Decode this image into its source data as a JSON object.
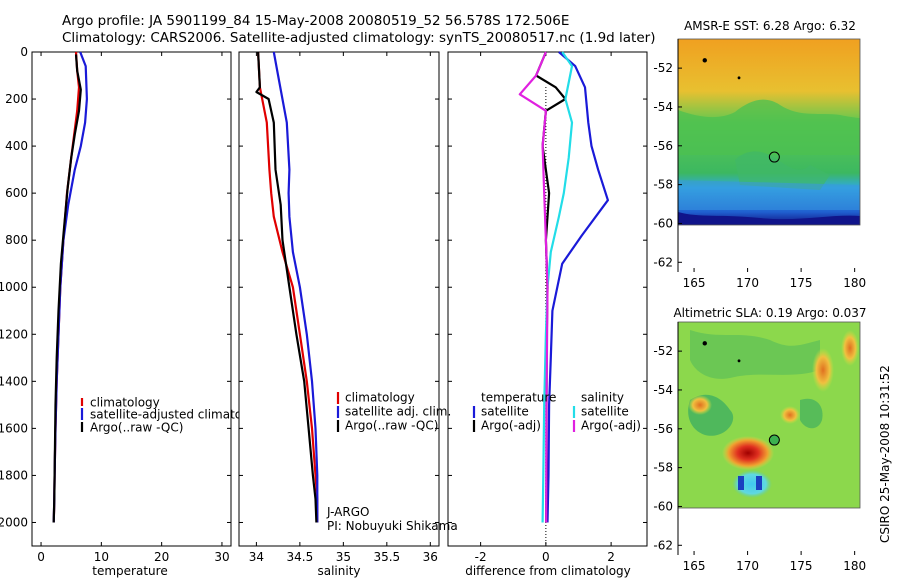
{
  "header": {
    "line1": "Argo profile: JA 5901199_84 15-May-2008 20080519_52 56.578S 172.506E",
    "line2": "Climatology: CARS2006. Satellite-adjusted climatology: synTS_20080517.nc (1.9d later)"
  },
  "side_text": "CSIRO 25-May-2008 10:31:52",
  "colors": {
    "red": "#e00000",
    "blue": "#1a1ad8",
    "black": "#000000",
    "cyan": "#22dde8",
    "magenta": "#e020e0"
  },
  "chart_data": [
    {
      "id": "temperature",
      "type": "line",
      "xlabel": "temperature",
      "xlim": [
        -1.5,
        31.5
      ],
      "xticks": [
        0,
        10,
        20,
        30
      ],
      "ylim": [
        2100,
        0
      ],
      "yticks": [
        0,
        200,
        400,
        600,
        800,
        1000,
        1200,
        1400,
        1600,
        1800,
        2000
      ],
      "legend": [
        "climatology",
        "satellite-adjusted climatology",
        "Argo(..raw -QC)"
      ],
      "series": [
        {
          "name": "climatology",
          "color": "red",
          "x": [
            5.8,
            6.0,
            6.3,
            6.0,
            5.5,
            5.0,
            4.3,
            3.7,
            3.2,
            2.9,
            2.6,
            2.4,
            2.25,
            2.2,
            2.15,
            2.1
          ],
          "y": [
            0,
            80,
            150,
            250,
            350,
            450,
            600,
            800,
            1000,
            1200,
            1400,
            1600,
            1800,
            1900,
            1960,
            2000
          ]
        },
        {
          "name": "satellite-adjusted climatology",
          "color": "blue",
          "x": [
            6.5,
            7.4,
            7.6,
            7.3,
            6.6,
            5.6,
            4.5,
            3.7,
            3.2,
            2.9,
            2.6,
            2.4,
            2.25,
            2.2,
            2.1
          ],
          "y": [
            0,
            60,
            200,
            300,
            400,
            500,
            650,
            800,
            1000,
            1200,
            1400,
            1600,
            1800,
            1900,
            2000
          ]
        },
        {
          "name": "Argo(..raw -QC)",
          "color": "black",
          "x": [
            5.8,
            6.0,
            6.6,
            6.3,
            5.6,
            5.0,
            4.4,
            3.8,
            3.3,
            2.9,
            2.6,
            2.4,
            2.3,
            2.2,
            2.1
          ],
          "y": [
            10,
            80,
            160,
            250,
            350,
            450,
            580,
            750,
            900,
            1100,
            1300,
            1500,
            1700,
            1900,
            2000
          ]
        }
      ]
    },
    {
      "id": "salinity",
      "type": "line",
      "xlabel": "salinity",
      "xlim": [
        33.8,
        36.1
      ],
      "xticks": [
        34,
        34.5,
        35,
        35.5,
        36
      ],
      "ylim": [
        2100,
        0
      ],
      "yticks": [
        0,
        200,
        400,
        600,
        800,
        1000,
        1200,
        1400,
        1600,
        1800,
        2000
      ],
      "legend": [
        "climatology",
        "satellite adj. clim.",
        "Argo(..raw -QC)"
      ],
      "annotation": [
        "J-ARGO",
        "PI: Nobuyuki Shikama"
      ],
      "series": [
        {
          "name": "climatology",
          "color": "red",
          "x": [
            34.02,
            34.04,
            34.12,
            34.15,
            34.17,
            34.2,
            34.3,
            34.42,
            34.5,
            34.58,
            34.64,
            34.68,
            34.7,
            34.7
          ],
          "y": [
            0,
            150,
            300,
            500,
            600,
            700,
            850,
            1000,
            1200,
            1400,
            1600,
            1800,
            1900,
            2000
          ]
        },
        {
          "name": "satellite adj. clim.",
          "color": "blue",
          "x": [
            34.2,
            34.25,
            34.35,
            34.38,
            34.37,
            34.38,
            34.42,
            34.5,
            34.58,
            34.64,
            34.68,
            34.7,
            34.7
          ],
          "y": [
            0,
            100,
            300,
            500,
            600,
            700,
            850,
            1000,
            1200,
            1400,
            1600,
            1800,
            2000
          ]
        },
        {
          "name": "Argo(..raw -QC)",
          "color": "black",
          "x": [
            34.02,
            34.04,
            34.0,
            34.14,
            34.2,
            34.22,
            34.28,
            34.3,
            34.38,
            34.46,
            34.55,
            34.6,
            34.65,
            34.68,
            34.69
          ],
          "y": [
            0,
            150,
            170,
            200,
            300,
            500,
            650,
            800,
            1000,
            1200,
            1400,
            1600,
            1800,
            1900,
            2000
          ]
        }
      ]
    },
    {
      "id": "difference",
      "type": "line",
      "xlabel": "difference from climatology",
      "xlim": [
        -3,
        3.1
      ],
      "xticks": [
        -2,
        0,
        2
      ],
      "ylim": [
        2100,
        0
      ],
      "yticks": [
        0,
        200,
        400,
        600,
        800,
        1000,
        1200,
        1400,
        1600,
        1800,
        2000
      ],
      "legend_temperature": {
        "heading": "temperature",
        "items": [
          "satellite",
          "Argo(-adj)"
        ]
      },
      "legend_salinity": {
        "heading": "salinity",
        "items": [
          "satellite",
          "Argo(-adj)"
        ]
      },
      "series": [
        {
          "name": "temperature satellite",
          "color": "blue",
          "x": [
            0.4,
            0.9,
            1.2,
            1.3,
            1.4,
            1.6,
            1.9,
            1.1,
            0.5,
            0.2,
            0.15,
            0.1,
            0.08,
            0.05
          ],
          "y": [
            0,
            60,
            150,
            300,
            400,
            500,
            630,
            780,
            900,
            1100,
            1300,
            1500,
            1800,
            2000
          ]
        },
        {
          "name": "temperature Argo(-adj)",
          "color": "black",
          "x": [
            0.0,
            -0.3,
            0.3,
            0.6,
            0.0,
            -0.1,
            0.1,
            0.0,
            0.05,
            0.03,
            0.02,
            0.02,
            0.01
          ],
          "y": [
            0,
            100,
            150,
            200,
            250,
            400,
            600,
            800,
            1000,
            1200,
            1500,
            1800,
            2000
          ]
        },
        {
          "name": "salinity satellite",
          "color": "cyan",
          "x": [
            0.5,
            0.8,
            0.6,
            0.8,
            0.7,
            0.55,
            0.4,
            0.15,
            0.05,
            0.0,
            -0.05,
            -0.08,
            -0.1
          ],
          "y": [
            0,
            60,
            200,
            300,
            450,
            600,
            700,
            850,
            1000,
            1200,
            1500,
            1800,
            2000
          ]
        },
        {
          "name": "salinity Argo(-adj)",
          "color": "magenta",
          "x": [
            0.0,
            -0.3,
            -0.8,
            0.0,
            -0.1,
            -0.05,
            0.0,
            0.05,
            0.02,
            0.01
          ],
          "y": [
            0,
            100,
            180,
            250,
            400,
            600,
            800,
            1000,
            1500,
            2000
          ]
        }
      ]
    },
    {
      "id": "sst_map",
      "type": "heatmap",
      "title": "AMSR-E SST: 6.28 Argo: 6.32",
      "xlim": [
        163.5,
        180.5
      ],
      "ylim": [
        -62.5,
        -50.5
      ],
      "xticks": [
        165,
        170,
        175,
        180
      ],
      "yticks": [
        -52,
        -54,
        -56,
        -58,
        -60,
        -62
      ],
      "float_position": [
        172.5,
        -56.58
      ]
    },
    {
      "id": "sla_map",
      "type": "heatmap",
      "title": "Altimetric SLA: 0.19 Argo: 0.037",
      "xlim": [
        163.5,
        180.5
      ],
      "ylim": [
        -62.5,
        -50.5
      ],
      "xticks": [
        165,
        170,
        175,
        180
      ],
      "yticks": [
        -52,
        -54,
        -56,
        -58,
        -60,
        -62
      ],
      "float_position": [
        172.5,
        -56.58
      ]
    }
  ]
}
